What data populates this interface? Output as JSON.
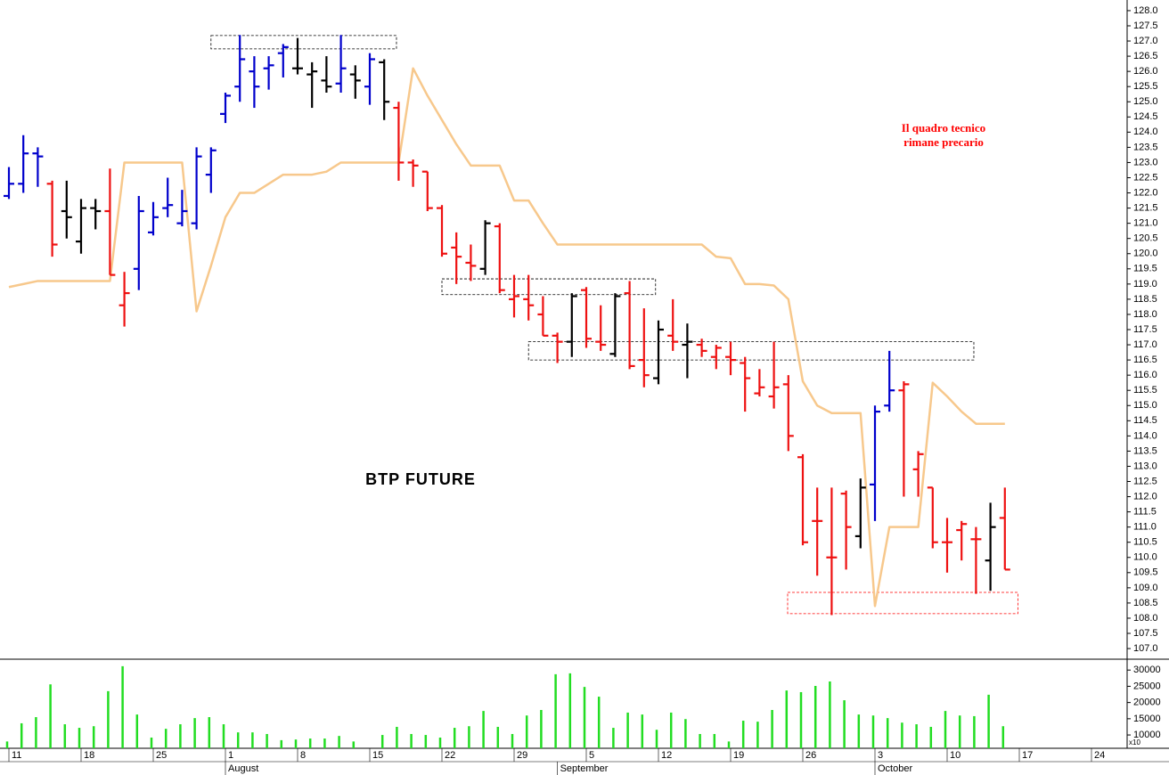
{
  "chart_data": {
    "type": "ohlc",
    "title": "BTP FUTURE",
    "annotation_lines": [
      "Il quadro tecnico",
      "rimane precario"
    ],
    "categories": [
      "11",
      null,
      null,
      null,
      null,
      "18",
      null,
      null,
      null,
      null,
      "25",
      null,
      null,
      null,
      null,
      "1",
      null,
      null,
      null,
      null,
      "8",
      null,
      null,
      null,
      null,
      "15",
      null,
      null,
      null,
      null,
      "22",
      null,
      null,
      null,
      null,
      "29",
      null,
      null,
      null,
      null,
      "5",
      null,
      null,
      null,
      null,
      "12",
      null,
      null,
      null,
      null,
      "19",
      null,
      null,
      null,
      null,
      "26",
      null,
      null,
      null,
      null,
      "3",
      null,
      null,
      null,
      null,
      "10",
      null,
      null,
      null,
      null
    ],
    "months": [
      null,
      null,
      null,
      null,
      null,
      null,
      null,
      null,
      null,
      null,
      null,
      null,
      null,
      null,
      null,
      "August",
      null,
      null,
      null,
      null,
      null,
      null,
      null,
      null,
      null,
      null,
      null,
      null,
      null,
      null,
      null,
      null,
      null,
      null,
      null,
      null,
      null,
      null,
      "September",
      null,
      null,
      null,
      null,
      null,
      null,
      null,
      null,
      null,
      null,
      null,
      null,
      null,
      null,
      null,
      null,
      null,
      null,
      null,
      null,
      null,
      "October",
      null,
      null,
      null,
      null,
      null,
      null,
      null,
      null,
      null
    ],
    "future_ticks": [
      "17",
      "24"
    ],
    "open": [
      121.9,
      122.3,
      123.3,
      122.3,
      121.4,
      120.4,
      121.5,
      121.4,
      118.3,
      119.5,
      120.7,
      121.5,
      121.0,
      121.0,
      122.6,
      124.6,
      125.5,
      126.0,
      126.1,
      126.6,
      126.1,
      125.9,
      125.7,
      125.6,
      125.9,
      125.5,
      126.3,
      124.8,
      123.0,
      122.7,
      121.5,
      120.2,
      119.7,
      119.5,
      120.9,
      118.5,
      118.5,
      118.0,
      117.3,
      117.1,
      118.8,
      117.1,
      116.7,
      118.7,
      116.5,
      115.9,
      117.3,
      117.0,
      117.0,
      116.6,
      116.6,
      116.4,
      115.4,
      115.3,
      115.7,
      113.3,
      111.2,
      110.0,
      112.1,
      110.7,
      112.4,
      115.0,
      115.5,
      112.9,
      112.3,
      110.5,
      110.9,
      110.6,
      109.9,
      111.3
    ],
    "high": [
      122.85,
      123.9,
      123.5,
      122.4,
      122.4,
      121.8,
      121.8,
      122.8,
      119.4,
      121.9,
      121.7,
      122.5,
      122.1,
      123.5,
      123.5,
      125.3,
      127.2,
      126.5,
      126.5,
      126.9,
      127.1,
      126.3,
      126.5,
      127.2,
      126.2,
      126.6,
      126.4,
      125.0,
      123.1,
      122.7,
      121.6,
      120.7,
      120.3,
      121.1,
      121.0,
      119.3,
      119.3,
      118.6,
      117.4,
      118.7,
      118.9,
      118.3,
      118.7,
      119.1,
      118.2,
      117.8,
      118.5,
      117.7,
      117.2,
      117.0,
      117.1,
      116.6,
      116.2,
      117.1,
      116.0,
      113.4,
      112.3,
      112.3,
      112.2,
      112.6,
      115.0,
      116.8,
      115.8,
      113.5,
      112.3,
      111.3,
      111.2,
      111.0,
      111.8,
      112.3
    ],
    "low": [
      121.8,
      122.0,
      122.2,
      119.9,
      120.5,
      120.0,
      120.8,
      119.3,
      117.6,
      118.8,
      120.6,
      121.2,
      120.9,
      120.8,
      122.0,
      124.3,
      125.0,
      124.8,
      125.4,
      125.8,
      125.9,
      124.8,
      125.3,
      125.3,
      125.1,
      124.9,
      124.4,
      122.4,
      122.2,
      121.4,
      119.9,
      119.0,
      119.1,
      119.3,
      118.7,
      117.9,
      117.8,
      117.3,
      116.4,
      116.6,
      116.9,
      116.8,
      116.6,
      116.2,
      115.6,
      115.7,
      116.8,
      115.9,
      116.6,
      116.2,
      116.0,
      114.8,
      115.3,
      114.9,
      113.5,
      110.4,
      109.4,
      108.1,
      109.6,
      110.3,
      111.2,
      114.8,
      112.0,
      112.0,
      110.3,
      109.5,
      109.9,
      108.8,
      108.9,
      109.6
    ],
    "close": [
      122.3,
      123.3,
      123.2,
      120.3,
      121.2,
      121.5,
      121.4,
      119.3,
      118.7,
      121.4,
      121.2,
      121.6,
      121.4,
      123.2,
      123.4,
      125.2,
      126.4,
      125.5,
      126.2,
      126.8,
      126.1,
      126.0,
      125.5,
      126.1,
      125.7,
      126.4,
      125.0,
      123.0,
      122.9,
      121.5,
      120.0,
      119.9,
      119.6,
      121.0,
      118.8,
      118.6,
      118.3,
      117.3,
      117.1,
      118.6,
      117.2,
      117.0,
      118.6,
      116.3,
      116.0,
      117.5,
      117.1,
      117.1,
      116.8,
      116.9,
      116.5,
      115.9,
      115.6,
      115.6,
      114.0,
      110.5,
      111.2,
      110.0,
      111.0,
      112.3,
      114.8,
      115.5,
      115.7,
      113.4,
      110.5,
      110.5,
      111.1,
      110.6,
      111.0,
      109.6
    ],
    "bar_colors": [
      "#0000cc",
      "#0000cc",
      "#0000cc",
      "#ee1111",
      "#000000",
      "#000000",
      "#000000",
      "#ee1111",
      "#ee1111",
      "#0000cc",
      "#0000cc",
      "#0000cc",
      "#0000cc",
      "#0000cc",
      "#0000cc",
      "#0000cc",
      "#0000cc",
      "#0000cc",
      "#0000cc",
      "#0000cc",
      "#000000",
      "#000000",
      "#000000",
      "#0000cc",
      "#000000",
      "#0000cc",
      "#000000",
      "#ee1111",
      "#ee1111",
      "#ee1111",
      "#ee1111",
      "#ee1111",
      "#ee1111",
      "#000000",
      "#ee1111",
      "#ee1111",
      "#ee1111",
      "#ee1111",
      "#ee1111",
      "#000000",
      "#ee1111",
      "#ee1111",
      "#000000",
      "#ee1111",
      "#ee1111",
      "#000000",
      "#ee1111",
      "#000000",
      "#ee1111",
      "#ee1111",
      "#ee1111",
      "#ee1111",
      "#ee1111",
      "#ee1111",
      "#ee1111",
      "#ee1111",
      "#ee1111",
      "#ee1111",
      "#ee1111",
      "#000000",
      "#0000cc",
      "#0000cc",
      "#ee1111",
      "#ee1111",
      "#ee1111",
      "#ee1111",
      "#ee1111",
      "#ee1111",
      "#000000",
      "#ee1111"
    ],
    "line": {
      "color": "#f7c88c",
      "values": [
        118.9,
        119.0,
        119.1,
        119.1,
        119.1,
        119.1,
        119.1,
        119.1,
        123.0,
        123.0,
        123.0,
        123.0,
        123.0,
        118.1,
        119.6,
        121.2,
        122.0,
        122.0,
        122.3,
        122.6,
        122.6,
        122.6,
        122.7,
        123.0,
        123.0,
        123.0,
        123.0,
        123.0,
        126.1,
        125.2,
        124.4,
        123.6,
        122.9,
        122.9,
        122.9,
        121.75,
        121.75,
        121.0,
        120.3,
        120.3,
        120.3,
        120.3,
        120.3,
        120.3,
        120.3,
        120.3,
        120.3,
        120.3,
        120.3,
        119.9,
        119.85,
        119.0,
        119.0,
        118.95,
        118.5,
        115.8,
        115.0,
        114.75,
        114.75,
        114.75,
        108.4,
        111.0,
        111.0,
        111.0,
        115.75,
        115.3,
        114.8,
        114.4,
        114.4,
        114.4
      ]
    },
    "zones": [
      {
        "start": 14,
        "end": 26.85,
        "low": 126.74,
        "high": 127.18,
        "color": "#000000"
      },
      {
        "start": 30,
        "end": 44.8,
        "low": 118.65,
        "high": 119.17,
        "color": "#000000"
      },
      {
        "start": 36,
        "end": 66.85,
        "low": 116.5,
        "high": 117.1,
        "color": "#000000"
      },
      {
        "start": 53.95,
        "end": 69.9,
        "low": 108.15,
        "high": 108.85,
        "color": "#ff0000"
      }
    ],
    "ylim": [
      106.65,
      128.35
    ],
    "yticks": [
      {
        "value": 107,
        "label": "107.0"
      },
      107.5,
      {
        "value": 108,
        "label": "108.0"
      },
      108.5,
      {
        "value": 109,
        "label": "109.0"
      },
      109.5,
      {
        "value": 110,
        "label": "110.0"
      },
      110.5,
      {
        "value": 111,
        "label": "111.0"
      },
      111.5,
      {
        "value": 112,
        "label": "112.0"
      },
      112.5,
      {
        "value": 113,
        "label": "113.0"
      },
      113.5,
      {
        "value": 114,
        "label": "114.0"
      },
      114.5,
      {
        "value": 115,
        "label": "115.0"
      },
      115.5,
      {
        "value": 116,
        "label": "116.0"
      },
      116.5,
      {
        "value": 117,
        "label": "117.0"
      },
      117.5,
      {
        "value": 118,
        "label": "118.0"
      },
      118.5,
      {
        "value": 119,
        "label": "119.0"
      },
      119.5,
      {
        "value": 120,
        "label": "120.0"
      },
      120.5,
      {
        "value": 121,
        "label": "121.0"
      },
      121.5,
      {
        "value": 122,
        "label": "122.0"
      },
      122.5,
      {
        "value": 123,
        "label": "123.0"
      },
      123.5,
      {
        "value": 124,
        "label": "124.0"
      },
      124.5,
      {
        "value": 125,
        "label": "125.0"
      },
      125.5,
      {
        "value": 126,
        "label": "126.0"
      },
      126.5,
      {
        "value": 127,
        "label": "127.0"
      },
      127.5,
      {
        "value": 128,
        "label": "128.0"
      }
    ],
    "volume": {
      "color": "#22dd22",
      "multiplier_label": "x10",
      "values": [
        8000,
        13600,
        15500,
        25600,
        13300,
        12200,
        12700,
        23500,
        31200,
        16300,
        9200,
        11900,
        13300,
        15200,
        15500,
        13300,
        10800,
        10800,
        10300,
        8400,
        8600,
        8900,
        8900,
        9700,
        8000,
        null,
        10000,
        12500,
        10300,
        10000,
        9200,
        12200,
        12700,
        17400,
        12500,
        10300,
        16000,
        17700,
        28700,
        29000,
        24800,
        21800,
        12200,
        16900,
        16300,
        11600,
        16900,
        14900,
        10300,
        10300,
        8000,
        14400,
        14100,
        17700,
        23700,
        23200,
        25100,
        26500,
        20700,
        16300,
        16000,
        15200,
        13800,
        13300,
        12500,
        17400,
        16000,
        15800,
        22400,
        12700
      ],
      "ylim": [
        5900,
        32800
      ],
      "yticks": [
        10000,
        15000,
        20000,
        25000,
        30000
      ]
    }
  }
}
